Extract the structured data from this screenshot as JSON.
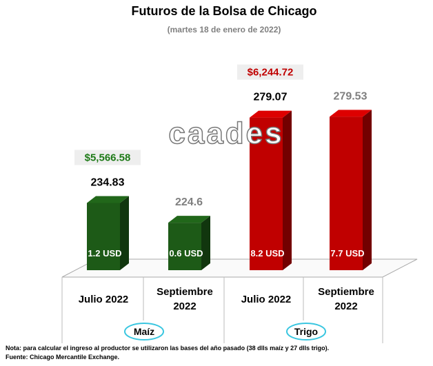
{
  "chart_data": {
    "type": "bar3d",
    "title": "Futuros de la Bolsa de Chicago",
    "subtitle": "(martes 18 de enero de 2022)",
    "watermark": "caades",
    "categories": [
      "Julio 2022",
      "Septiembre 2022",
      "Julio 2022",
      "Septiembre 2022"
    ],
    "values": [
      234.83,
      224.6,
      279.07,
      279.53
    ],
    "colors": [
      "#1d5a17",
      "#1d5a17",
      "#c00000",
      "#c00000"
    ],
    "value_label_colors": [
      "#000000",
      "#7f7f7f",
      "#000000",
      "#7f7f7f"
    ],
    "inner_labels": [
      "1.2 USD",
      "0.6 USD",
      "8.2 USD",
      "7.7 USD"
    ],
    "groups": [
      {
        "label": "Maíz",
        "total": "$5,566.58",
        "total_color": "#1d7a17"
      },
      {
        "label": "Trigo",
        "total": "$6,244.72",
        "total_color": "#c00000"
      }
    ],
    "ylim": [
      200,
      285
    ],
    "notes": [
      "Nota: para calcular el ingreso al productor se utilizaron las bases del año pasado (38 dlls maíz y 27 dlls trigo).",
      "Fuente: Chicago Mercantile Exchange."
    ]
  }
}
